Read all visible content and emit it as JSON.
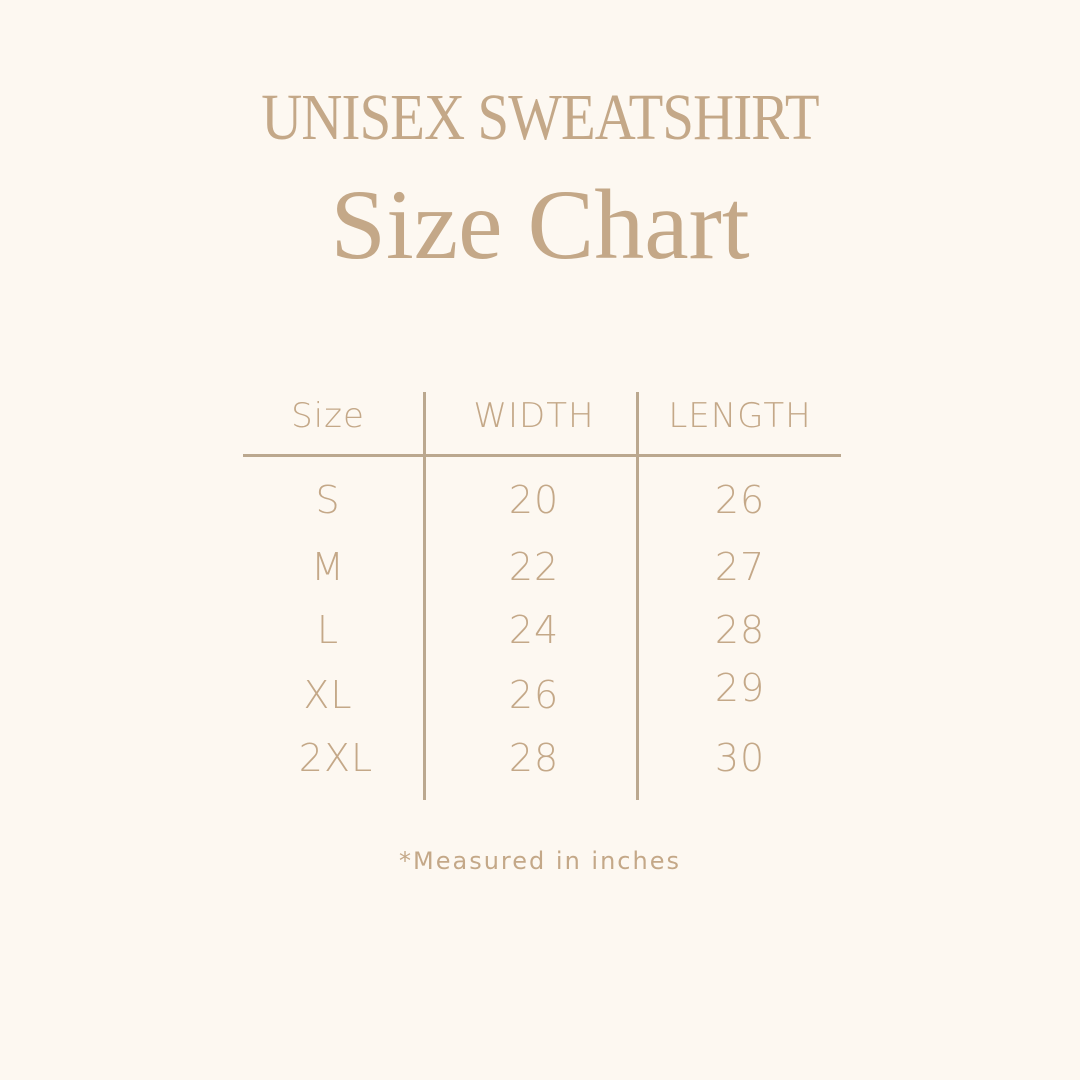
{
  "title": "UNISEX SWEATSHIRT",
  "subtitle": "Size Chart",
  "colors": {
    "background": "#fdf8f1",
    "text": "#c4a888",
    "lines": "#bba88f"
  },
  "table": {
    "headers": [
      "Size",
      "WIDTH",
      "LENGTH"
    ],
    "rows": [
      [
        "S",
        "20",
        "26"
      ],
      [
        "M",
        "22",
        "27"
      ],
      [
        "L",
        "24",
        "28"
      ],
      [
        "XL",
        "26",
        "29"
      ],
      [
        "2XL",
        "28",
        "30"
      ]
    ]
  },
  "footnote": "*Measured in inches"
}
